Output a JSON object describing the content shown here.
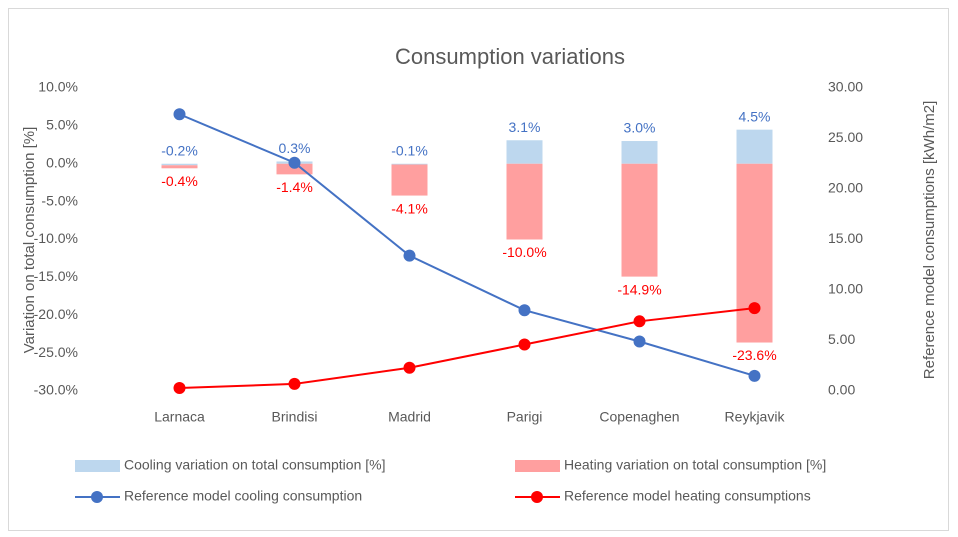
{
  "chart_data": {
    "type": "combo",
    "title": "Consumption variations",
    "ylabel": "Variation on total consumption [%]",
    "y2label": "Reference model consumptions [kWh/m2]",
    "categories": [
      "Larnaca",
      "Brindisi",
      "Madrid",
      "Parigi",
      "Copenaghen",
      "Reykjavik"
    ],
    "ylim": [
      -30,
      10
    ],
    "yticks": [
      {
        "value": -30,
        "label": "-30.0%"
      },
      {
        "value": -25,
        "label": "-25.0%"
      },
      {
        "value": -20,
        "label": "-20.0%"
      },
      {
        "value": -15,
        "label": "-15.0%"
      },
      {
        "value": -10,
        "label": "-10.0%"
      },
      {
        "value": -5,
        "label": "-5.0%"
      },
      {
        "value": 0,
        "label": "0.0%"
      },
      {
        "value": 5,
        "label": "5.0%"
      },
      {
        "value": 10,
        "label": "10.0%"
      }
    ],
    "y2lim": [
      0,
      30
    ],
    "y2ticks": [
      {
        "value": 0,
        "label": "0.00"
      },
      {
        "value": 5,
        "label": "5.00"
      },
      {
        "value": 10,
        "label": "10.00"
      },
      {
        "value": 15,
        "label": "15.00"
      },
      {
        "value": 20,
        "label": "20.00"
      },
      {
        "value": 25,
        "label": "25.00"
      },
      {
        "value": 30,
        "label": "30.00"
      }
    ],
    "series": [
      {
        "name": "Cooling variation on total consumption [%]",
        "type": "bar",
        "color": "#bdd7ee",
        "label_color": "#4472c4",
        "values": [
          -0.2,
          0.3,
          -0.1,
          3.1,
          3.0,
          4.5
        ],
        "value_labels": [
          "-0.2%",
          "0.3%",
          "-0.1%",
          "3.1%",
          "3.0%",
          "4.5%"
        ]
      },
      {
        "name": "Heating variation on total consumption [%]",
        "type": "bar",
        "color": "#ff9f9f",
        "label_color": "#ff0000",
        "values": [
          -0.4,
          -1.4,
          -4.1,
          -10.0,
          -14.9,
          -23.6
        ],
        "value_labels": [
          "-0.4%",
          "-1.4%",
          "-4.1%",
          "-10.0%",
          "-14.9%",
          "-23.6%"
        ]
      },
      {
        "name": "Reference model cooling consumption",
        "type": "line",
        "axis": "y2",
        "color": "#4472c4",
        "values": [
          27.4,
          22.6,
          13.4,
          8.0,
          4.9,
          1.5
        ]
      },
      {
        "name": "Reference model heating consumptions",
        "type": "line",
        "axis": "y2",
        "color": "#ff0000",
        "values": [
          0.3,
          0.7,
          2.3,
          4.6,
          6.9,
          8.2
        ]
      }
    ]
  }
}
